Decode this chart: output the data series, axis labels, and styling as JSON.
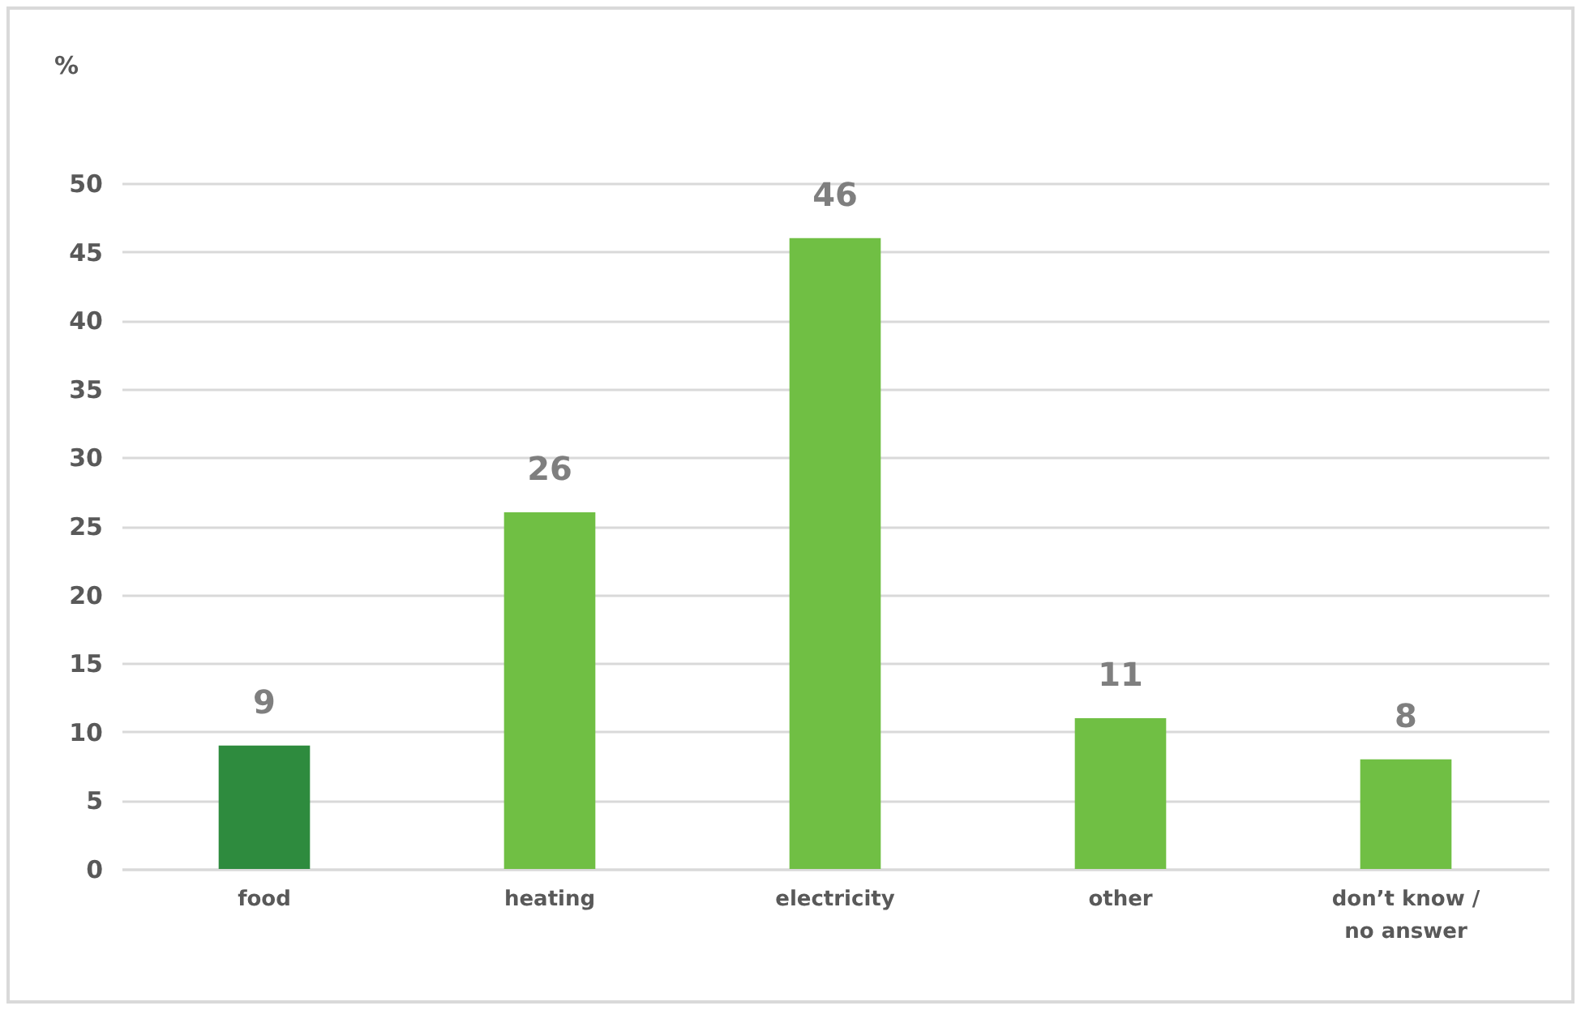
{
  "chart_data": {
    "type": "bar",
    "ylabel": "%",
    "categories": [
      "food",
      "heating",
      "electricity",
      "other",
      "don’t know /\nno answer"
    ],
    "values": [
      9,
      26,
      46,
      11,
      8
    ],
    "colors": [
      "#2e8b3e",
      "#70bf44",
      "#70bf44",
      "#70bf44",
      "#70bf44"
    ],
    "ylim": [
      0,
      50
    ],
    "yticks": [
      0,
      5,
      10,
      15,
      20,
      25,
      30,
      35,
      40,
      45,
      50
    ],
    "grid": "y",
    "data_labels": true
  }
}
